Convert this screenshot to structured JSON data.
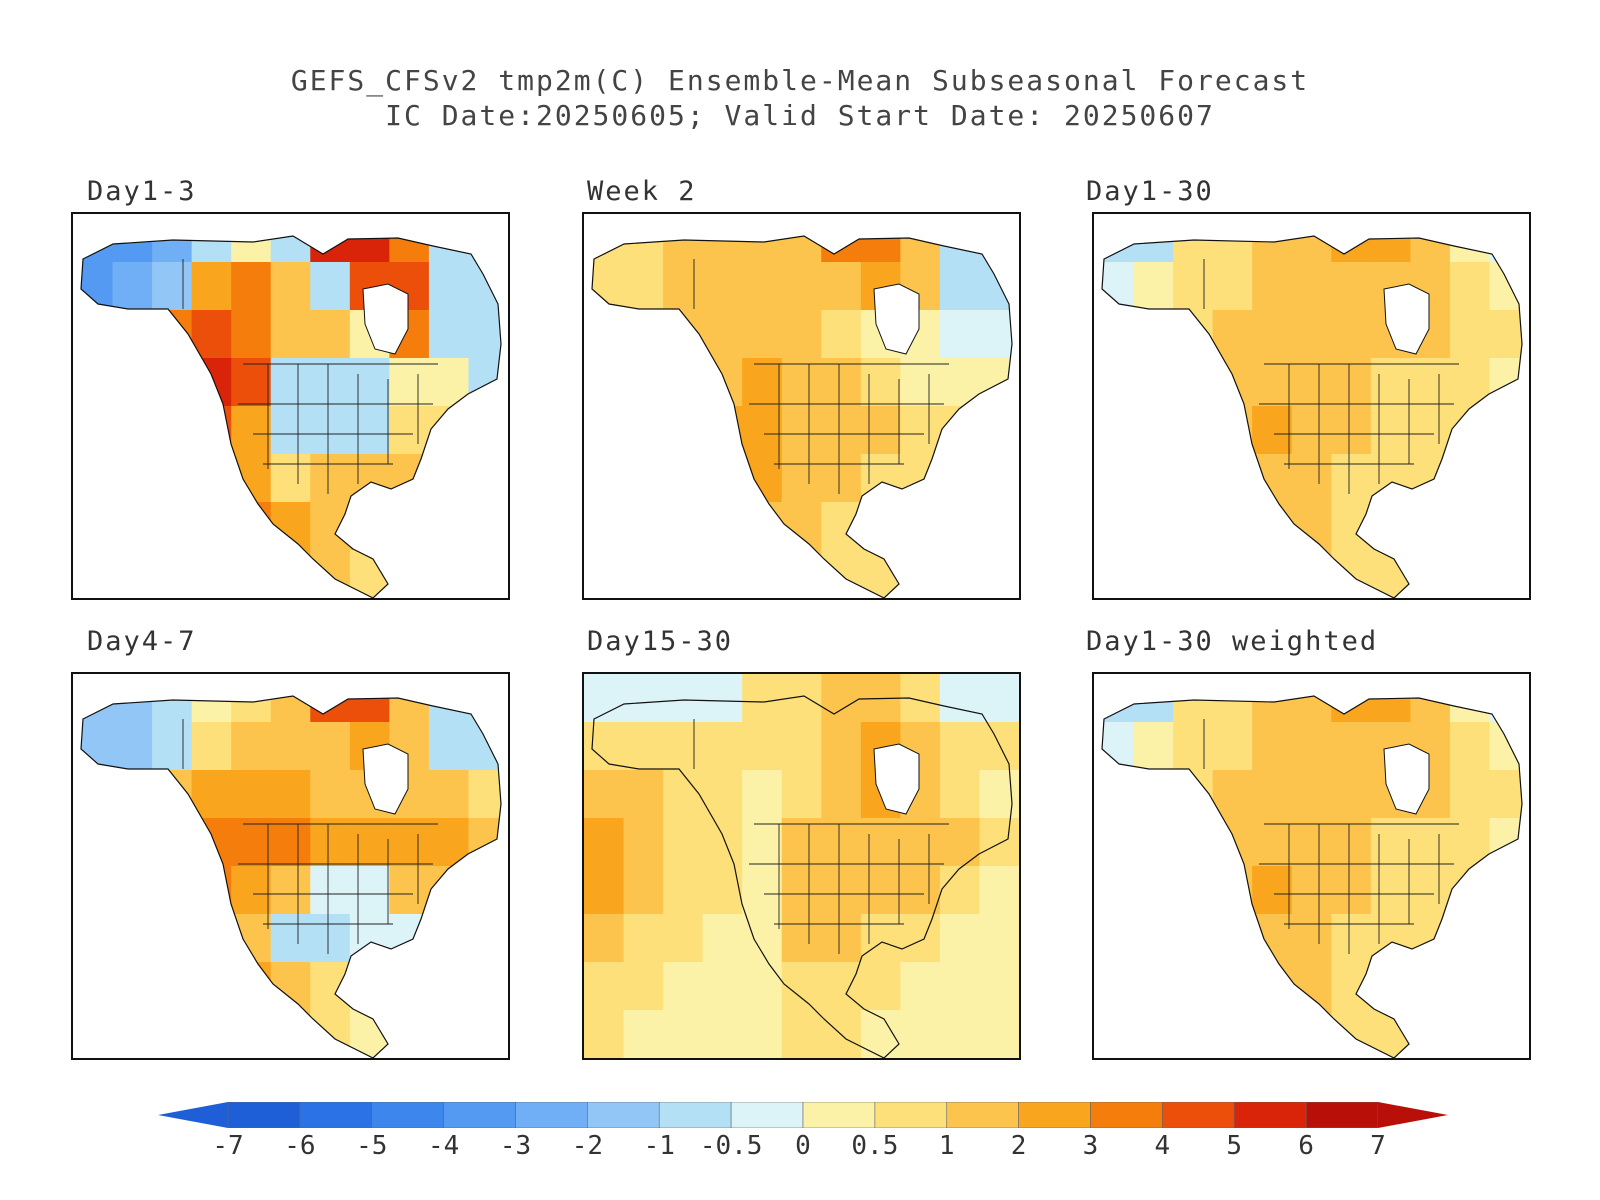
{
  "title_line1": "GEFS_CFSv2 tmp2m(C) Ensemble-Mean Subseasonal Forecast",
  "title_line2": "IC Date:20250605; Valid Start Date: 20250607",
  "panels": [
    {
      "id": "day1-3",
      "label": "Day1-3",
      "pattern": "strong"
    },
    {
      "id": "week2",
      "label": "Week 2",
      "pattern": "warm"
    },
    {
      "id": "day1-30",
      "label": "Day1-30",
      "pattern": "mild"
    },
    {
      "id": "day4-7",
      "label": "Day4-7",
      "pattern": "mixed"
    },
    {
      "id": "day15-30",
      "label": "Day15-30",
      "pattern": "ocean"
    },
    {
      "id": "day1-30-weighted",
      "label": "Day1-30 weighted",
      "pattern": "mild"
    }
  ],
  "colorbar": {
    "ticks": [
      "-7",
      "-6",
      "-5",
      "-4",
      "-3",
      "-2",
      "-1",
      "-0.5",
      "0",
      "0.5",
      "1",
      "2",
      "3",
      "4",
      "5",
      "6",
      "7"
    ],
    "colors": [
      "#1e5fd8",
      "#2a72e6",
      "#3d86ee",
      "#5499f2",
      "#70aef5",
      "#91c6f7",
      "#b4e0f6",
      "#dcf3f8",
      "#fbf2a8",
      "#fde07a",
      "#fcc44c",
      "#f9a51d",
      "#f57d0b",
      "#ec4f0a",
      "#d92409",
      "#b81009"
    ],
    "low_arrow_color": "#1e5fd8",
    "high_arrow_color": "#b81009"
  }
}
